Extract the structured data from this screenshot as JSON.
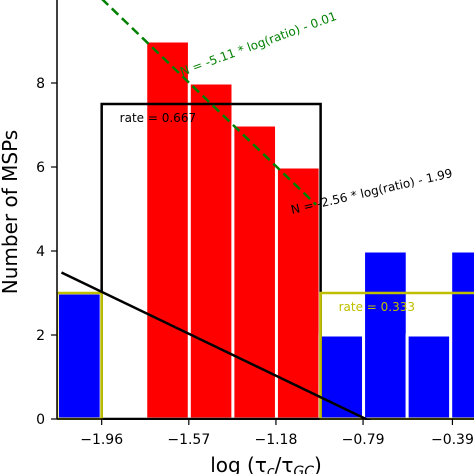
{
  "chart_data": {
    "type": "bar",
    "xlabel": "log (τ",
    "xlabel_sub1": "c",
    "xlabel_mid": "/τ",
    "xlabel_sub2": "GC",
    "xlabel_end": ")",
    "ylabel": "Number of MSPs",
    "xlim": [
      -2.16,
      -0.28
    ],
    "ylim": [
      0,
      10
    ],
    "x_ticks": [
      -1.96,
      -1.57,
      -1.18,
      -0.79,
      -0.39
    ],
    "x_tick_labels": [
      "−1.96",
      "−1.57",
      "−1.18",
      "−0.79",
      "−0.39"
    ],
    "y_ticks": [
      0,
      2,
      4,
      6,
      8
    ],
    "y_tick_labels": [
      "0",
      "2",
      "4",
      "6",
      "8"
    ],
    "bin_width": 0.1955,
    "series": [
      {
        "color": "#ff0000",
        "bars": [
          {
            "x": -1.665,
            "value": 9
          },
          {
            "x": -1.47,
            "value": 8
          },
          {
            "x": -1.275,
            "value": 7
          },
          {
            "x": -1.08,
            "value": 6
          }
        ]
      },
      {
        "color": "#0000ff",
        "bars": [
          {
            "x": -2.06,
            "value": 3
          },
          {
            "x": -0.885,
            "value": 2
          },
          {
            "x": -0.69,
            "value": 4
          },
          {
            "x": -0.495,
            "value": 2
          },
          {
            "x": -0.3,
            "value": 4
          }
        ]
      }
    ],
    "rate_boxes": [
      {
        "x0": -1.96,
        "x1": -0.98,
        "height": 7.5,
        "color": "#000000",
        "label": "rate = 0.667"
      },
      {
        "x0": -2.16,
        "x1": -1.96,
        "height": 3,
        "color": "#bfbf00",
        "label": null
      },
      {
        "x0": -0.98,
        "x1": -0.28,
        "height": 3,
        "color": "#bfbf00",
        "label": "rate = 0.333"
      }
    ],
    "fit_lines": [
      {
        "style": "dashed",
        "color": "#008000",
        "slope": -5.11,
        "intercept": -0.01,
        "label": "N = -5.11 * log(ratio) - 0.01",
        "x_range": [
          -1.96,
          -1.0
        ]
      },
      {
        "style": "solid",
        "color": "#000000",
        "slope": -2.56,
        "intercept": -1.99,
        "label": "N = -2.56 * log(ratio) - 1.99",
        "x_range": [
          -2.14,
          -0.3
        ]
      }
    ],
    "grid": false,
    "legend": "none"
  }
}
